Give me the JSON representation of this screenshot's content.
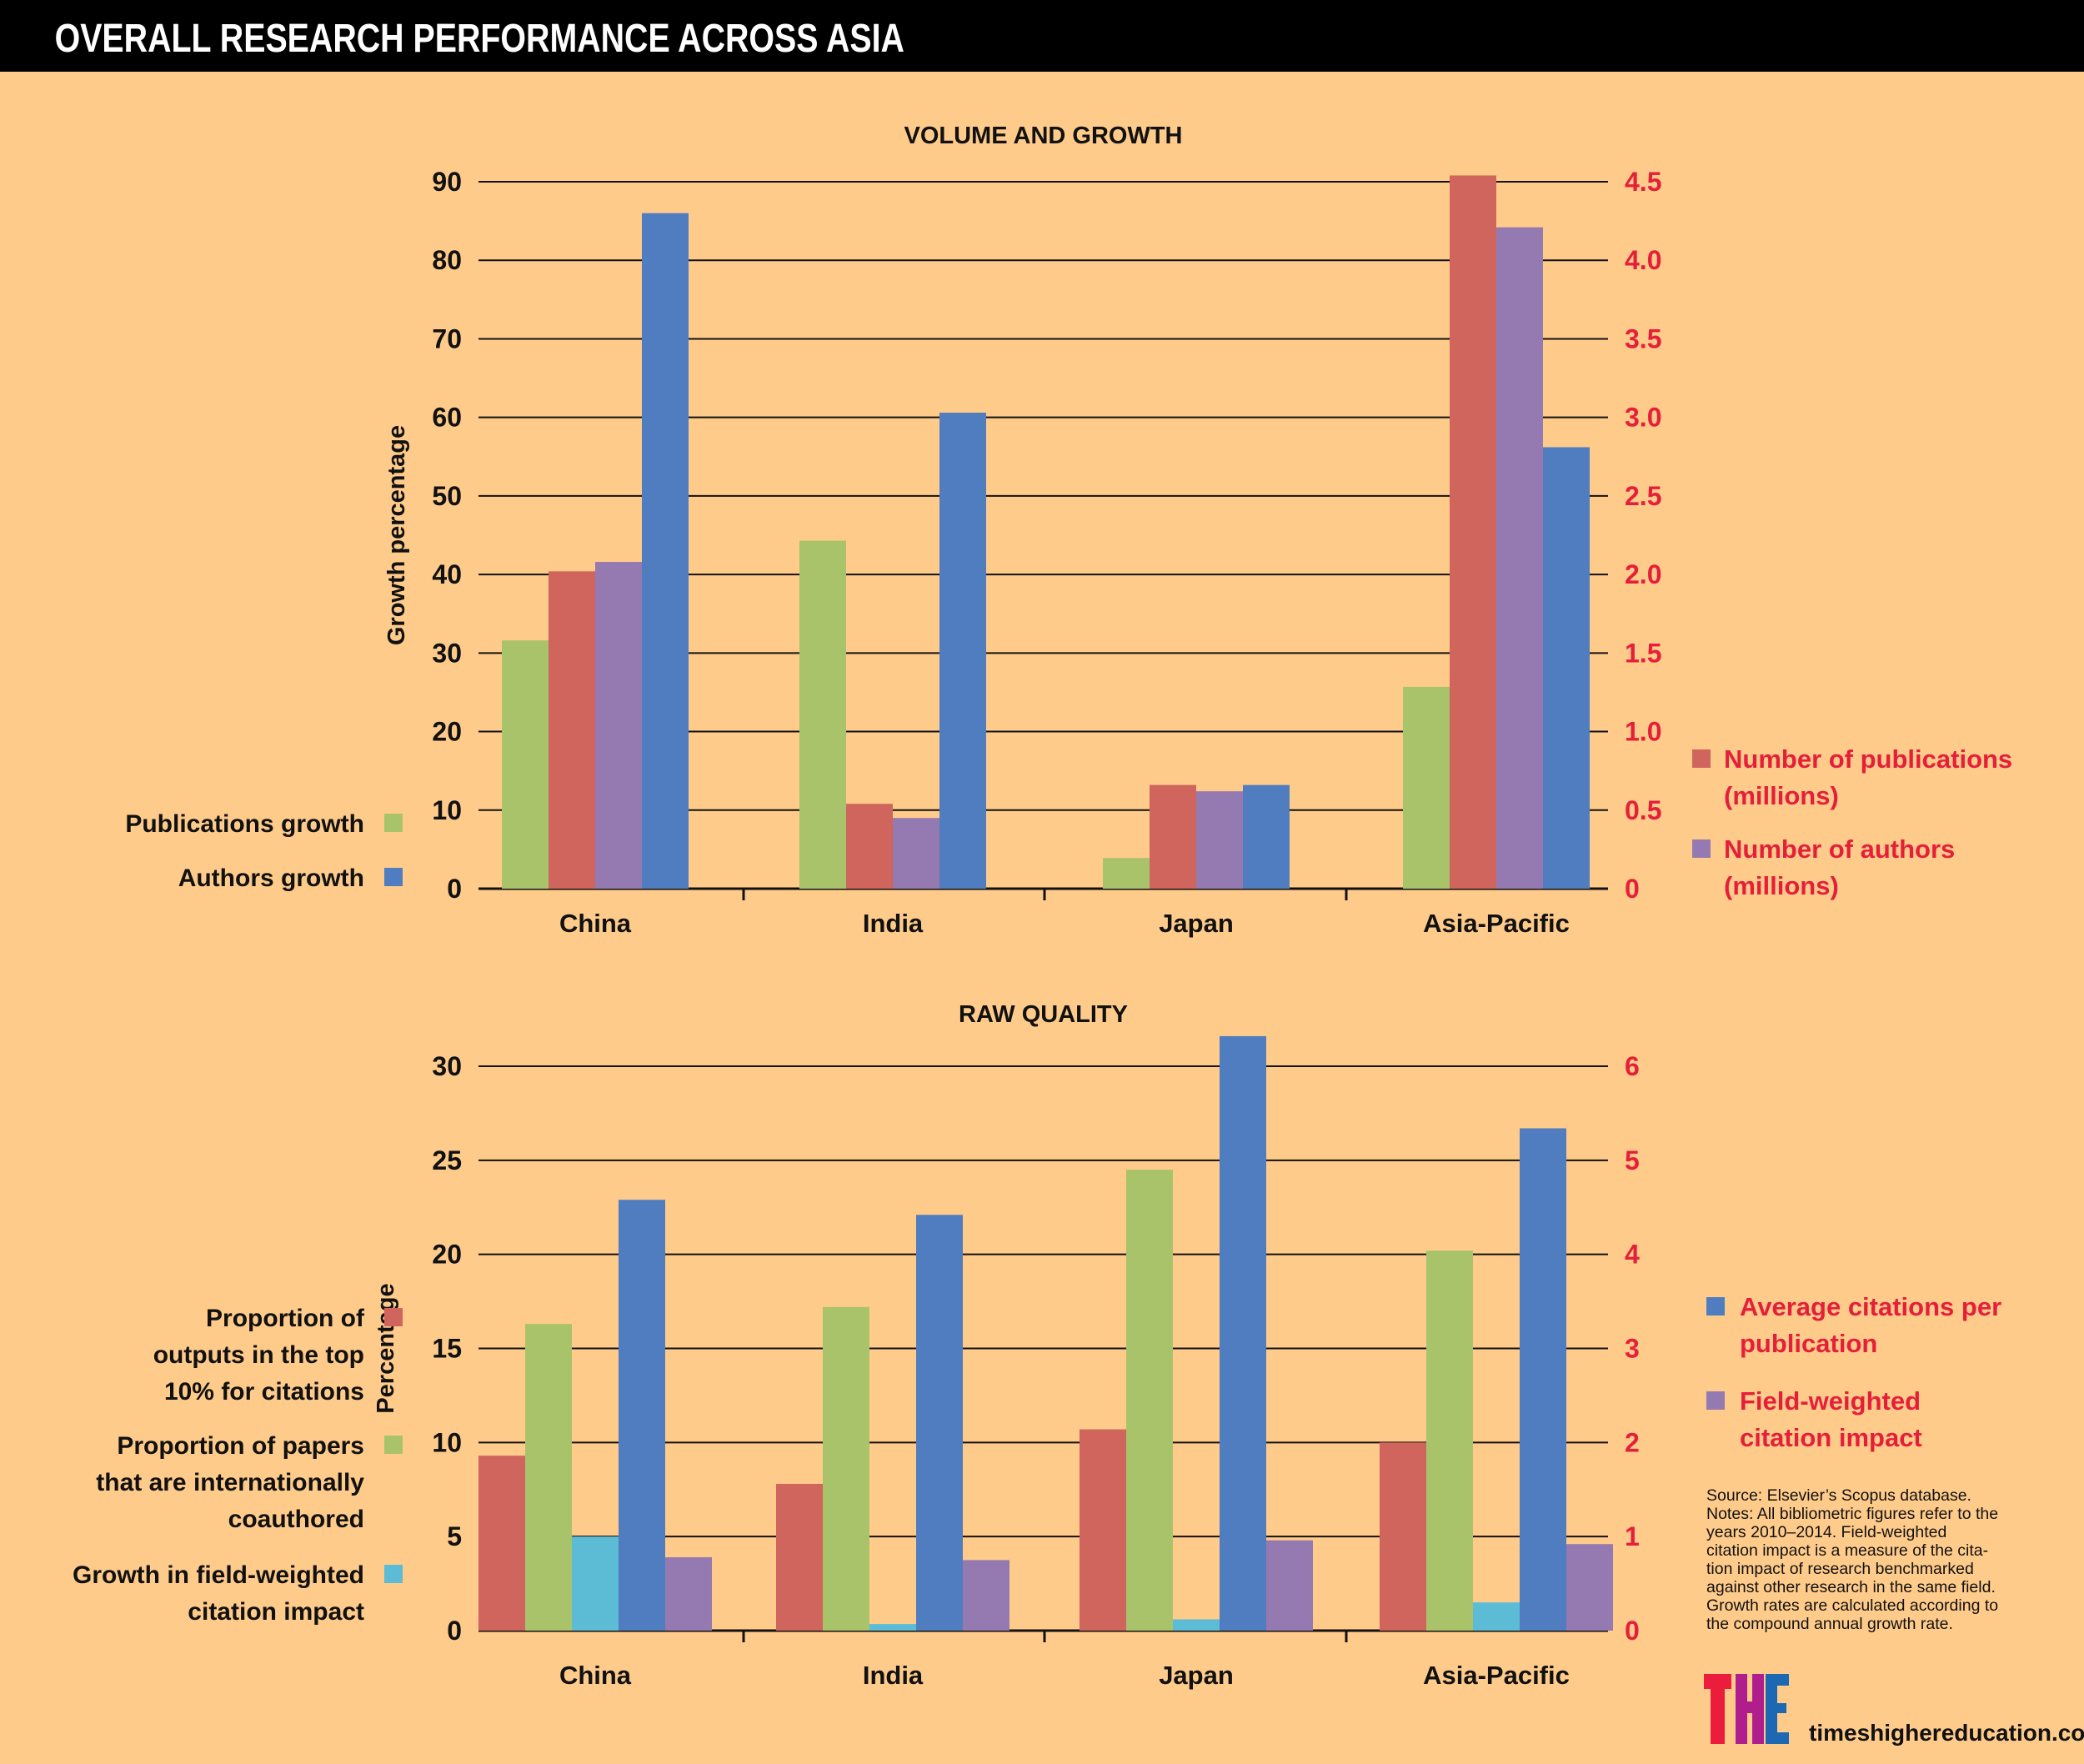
{
  "header": {
    "title": "OVERALL RESEARCH PERFORMANCE ACROSS ASIA"
  },
  "colors": {
    "background": "#FFCB8A",
    "publications_growth": "#A9C36B",
    "num_publications": "#CF655D",
    "num_authors": "#957AB1",
    "authors_growth": "#507DC0",
    "fwci_growth": "#5CBCD6",
    "right_axis": "#E51F3A"
  },
  "chart_data": [
    {
      "type": "bar",
      "title": "VOLUME AND GROWTH",
      "categories": [
        "China",
        "India",
        "Japan",
        "Asia-Pacific"
      ],
      "ylabel": "Growth percentage",
      "ylim": [
        0,
        90
      ],
      "yticks": [
        "0",
        "10",
        "20",
        "30",
        "40",
        "50",
        "60",
        "70",
        "80",
        "90"
      ],
      "y2lim": [
        0,
        4.5
      ],
      "y2ticks": [
        "0",
        "0.5",
        "1.0",
        "1.5",
        "2.0",
        "2.5",
        "3.0",
        "3.5",
        "4.0",
        "4.5"
      ],
      "grid": true,
      "series": [
        {
          "name": "Publications growth",
          "axis": "left",
          "color_key": "publications_growth",
          "values": [
            31.6,
            44.3,
            3.9,
            25.7
          ]
        },
        {
          "name": "Number of publications (millions)",
          "axis": "right",
          "color_key": "num_publications",
          "values": [
            2.02,
            0.54,
            0.66,
            4.54
          ]
        },
        {
          "name": "Number of authors (millions)",
          "axis": "right",
          "color_key": "num_authors",
          "values": [
            2.08,
            0.45,
            0.62,
            4.21
          ]
        },
        {
          "name": "Authors growth",
          "axis": "left",
          "color_key": "authors_growth",
          "values": [
            86.0,
            60.6,
            13.2,
            56.2
          ]
        }
      ],
      "legend_left": [
        {
          "label": "Publications growth",
          "color_key": "publications_growth"
        },
        {
          "label": "Authors growth",
          "color_key": "authors_growth"
        }
      ],
      "legend_right": [
        {
          "lines": [
            "Number of publications",
            "(millions)"
          ],
          "color_key": "num_publications"
        },
        {
          "lines": [
            "Number of authors",
            "(millions)"
          ],
          "color_key": "num_authors"
        }
      ]
    },
    {
      "type": "bar",
      "title": "RAW QUALITY",
      "categories": [
        "China",
        "India",
        "Japan",
        "Asia-Pacific"
      ],
      "ylabel": "Percentage",
      "ylim": [
        0,
        30
      ],
      "yticks": [
        "0",
        "5",
        "10",
        "15",
        "20",
        "25",
        "30"
      ],
      "y2lim": [
        0,
        6
      ],
      "y2ticks": [
        "0",
        "1",
        "2",
        "3",
        "4",
        "5",
        "6"
      ],
      "grid": true,
      "series": [
        {
          "name": "Proportion of outputs in the top 10% for citations",
          "axis": "left",
          "color_key": "num_publications",
          "values": [
            9.3,
            7.8,
            10.7,
            10.0
          ]
        },
        {
          "name": "Proportion of papers that are internationally coauthored",
          "axis": "left",
          "color_key": "publications_growth",
          "values": [
            16.3,
            17.2,
            24.5,
            20.2
          ]
        },
        {
          "name": "Growth in field-weighted citation impact",
          "axis": "left",
          "color_key": "fwci_growth",
          "values": [
            5.0,
            0.35,
            0.6,
            1.5
          ]
        },
        {
          "name": "Average citations per publication",
          "axis": "right",
          "color_key": "authors_growth",
          "values": [
            4.58,
            4.42,
            6.32,
            5.34
          ]
        },
        {
          "name": "Field-weighted citation impact",
          "axis": "right",
          "color_key": "num_authors",
          "values": [
            0.78,
            0.75,
            0.96,
            0.92
          ]
        }
      ],
      "legend_left": [
        {
          "lines": [
            "Proportion of",
            "outputs in the top",
            "10% for citations"
          ],
          "color_key": "num_publications"
        },
        {
          "lines": [
            "Proportion of papers",
            "that are internationally",
            "coauthored"
          ],
          "color_key": "publications_growth"
        },
        {
          "lines": [
            "Growth in field-weighted",
            "citation impact"
          ],
          "color_key": "fwci_growth"
        }
      ],
      "legend_right": [
        {
          "lines": [
            "Average citations per",
            "publication"
          ],
          "color_key": "authors_growth"
        },
        {
          "lines": [
            "Field-weighted",
            "citation impact"
          ],
          "color_key": "num_authors"
        }
      ]
    }
  ],
  "footer": {
    "notes": [
      "Source: Elsevier’s Scopus database.",
      "Notes: All bibliometric figures refer to the",
      "years 2010–2014. Field-weighted",
      "citation impact is a measure of the cita-",
      "tion impact of research benchmarked",
      "against other research in the same field.",
      "Growth rates are calculated according to",
      "the compound annual growth rate."
    ],
    "logo_text": "THE",
    "website": "timeshighereducation.com"
  }
}
